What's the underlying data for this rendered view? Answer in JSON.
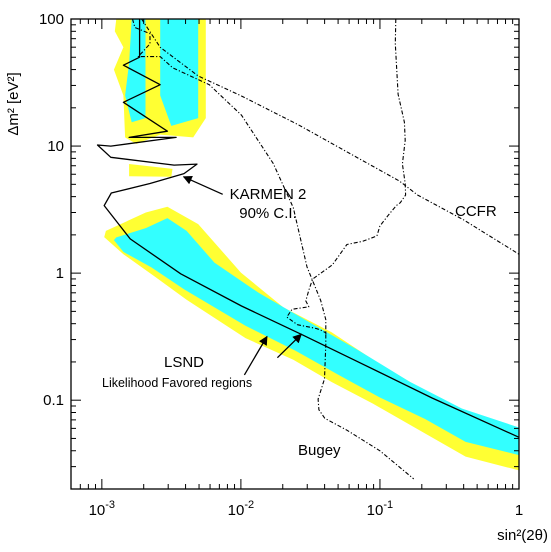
{
  "chart_data": {
    "type": "line",
    "xlabel": "sin²(2θ)",
    "ylabel": "Δm² [eV²]",
    "x_scale": "log",
    "y_scale": "log",
    "xlim": [
      0.0006,
      1
    ],
    "ylim": [
      0.02,
      100
    ],
    "x_ticks": [
      {
        "value": 0.001,
        "base": "10",
        "exp": "-3"
      },
      {
        "value": 0.01,
        "base": "10",
        "exp": "-2"
      },
      {
        "value": 0.1,
        "base": "10",
        "exp": "-1"
      },
      {
        "value": 1,
        "label": "1"
      }
    ],
    "y_ticks": [
      {
        "value": 0.1,
        "label": "0.1"
      },
      {
        "value": 1,
        "label": "1"
      },
      {
        "value": 10,
        "label": "10"
      },
      {
        "value": 100,
        "label": "100"
      }
    ],
    "colors": {
      "outer_region": "#ffff33",
      "inner_region": "#33ffff",
      "lines": "#000000"
    },
    "regions": [
      {
        "level": "outer",
        "x": [
          0.00107,
          0.00207,
          0.00296,
          0.00493,
          0.01,
          0.0202,
          0.0449,
          0.1,
          0.237,
          0.475,
          1,
          1,
          0.413,
          0.187,
          0.089,
          0.0449,
          0.0238,
          0.0108,
          0.00407,
          0.00242,
          0.00143,
          0.00104
        ],
        "y": [
          2.15,
          3.0,
          3.33,
          2.43,
          1.01,
          0.537,
          0.343,
          0.192,
          0.11,
          0.074,
          0.054,
          0.028,
          0.036,
          0.059,
          0.094,
          0.139,
          0.208,
          0.308,
          0.618,
          0.934,
          1.41,
          1.92
        ]
      },
      {
        "level": "inner",
        "x": [
          0.00127,
          0.00207,
          0.00296,
          0.00407,
          0.00645,
          0.0134,
          0.0299,
          0.0686,
          0.163,
          0.388,
          1,
          1,
          0.413,
          0.212,
          0.1,
          0.0494,
          0.0249,
          0.0108,
          0.00391,
          0.00227,
          0.00143,
          0.00122
        ],
        "y": [
          1.91,
          2.26,
          2.71,
          2.15,
          1.21,
          0.7,
          0.421,
          0.25,
          0.14,
          0.086,
          0.061,
          0.037,
          0.047,
          0.071,
          0.105,
          0.16,
          0.244,
          0.386,
          0.744,
          1.11,
          1.47,
          1.82
        ]
      },
      {
        "level": "outer",
        "x": [
          0.00127,
          0.00147,
          0.00196,
          0.00227,
          0.00263,
          0.00331,
          0.00493,
          0.00559,
          0.00559,
          0.00454,
          0.00263,
          0.00177,
          0.00147,
          0.00143,
          0.00122,
          0.00143,
          0.00124
        ],
        "y": [
          100,
          100,
          100,
          100,
          100,
          100,
          100,
          100,
          16.6,
          11.7,
          12.3,
          10.4,
          11.7,
          25,
          40,
          60,
          80
        ]
      },
      {
        "level": "inner",
        "x": [
          0.00164,
          0.00206,
          0.00206,
          0.00164,
          0.00147,
          0.00157
        ],
        "y": [
          100,
          100,
          16.6,
          15.4,
          25,
          45
        ]
      },
      {
        "level": "inner",
        "x": [
          0.00263,
          0.00493,
          0.00493,
          0.00316,
          0.00263
        ],
        "y": [
          100,
          100,
          16.6,
          14.4,
          25
        ]
      },
      {
        "level": "outer",
        "x": [
          0.00157,
          0.00322,
          0.00316,
          0.00157
        ],
        "y": [
          7.22,
          6.61,
          5.73,
          5.79
        ]
      }
    ],
    "curves": [
      {
        "name": "KARMEN 2 90% C.I.",
        "style": "solid",
        "x": [
          0.00187,
          0.00187,
          0.00143,
          0.00263,
          0.00143,
          0.00296,
          0.00157,
          0.00342,
          0.00116,
          0.00093,
          0.00116,
          0.00331,
          0.00483,
          0.0039,
          0.00222,
          0.00117,
          0.00104,
          0.0016,
          0.00369,
          0.0101,
          0.0272,
          0.0686,
          0.237,
          1
        ],
        "y": [
          100,
          50,
          43.3,
          30.4,
          22.1,
          13.1,
          11.7,
          11.7,
          10,
          10.2,
          8.16,
          7.08,
          7.21,
          6.07,
          5.07,
          4.27,
          3.4,
          1.86,
          0.988,
          0.551,
          0.33,
          0.202,
          0.104,
          0.051
        ]
      },
      {
        "name": "CCFR",
        "style": "dashdot",
        "x": [
          0.00193,
          0.00263,
          0.00493,
          0.01,
          0.0259,
          0.0686,
          0.138,
          0.187,
          0.399,
          1
        ],
        "y": [
          100,
          59.9,
          35.6,
          24.9,
          14.7,
          8.11,
          5.31,
          4.11,
          2.63,
          1.41
        ]
      },
      {
        "name": "Bugey",
        "style": "dashdot",
        "x": [
          0.00166,
          0.00173,
          0.00222,
          0.00222,
          0.00183,
          0.00263,
          0.00323,
          0.00593,
          0.0101,
          0.0171,
          0.0238,
          0.0299,
          0.0375,
          0.0408,
          0.0408,
          0.0399,
          0.0359,
          0.0364,
          0.0401,
          0.0579,
          0.1,
          0.175
        ],
        "y": [
          100,
          85.7,
          76.6,
          63.8,
          50.6,
          50.6,
          41.3,
          30.4,
          17.5,
          7.28,
          3.27,
          1.12,
          0.609,
          0.431,
          0.275,
          0.147,
          0.102,
          0.084,
          0.072,
          0.058,
          0.04,
          0.024
        ]
      },
      {
        "name": "Bugey",
        "style": "dashdot",
        "x": [
          0.13,
          0.129,
          0.135,
          0.15,
          0.152,
          0.145,
          0.152,
          0.153,
          0.14,
          0.131,
          0.114,
          0.1,
          0.0951,
          0.0751,
          0.0642,
          0.0579,
          0.0454,
          0.0328,
          0.0308,
          0.0293,
          0.0308,
          0.0233,
          0.0214,
          0.0255,
          0.0346,
          0.0375,
          0.0408,
          0.041
        ],
        "y": [
          100,
          63.8,
          25.6,
          15.4,
          11.1,
          7.22,
          5.07,
          4.11,
          3.58,
          3.4,
          2.83,
          2.35,
          1.96,
          1.78,
          1.72,
          1.68,
          1.16,
          0.897,
          0.733,
          0.604,
          0.543,
          0.519,
          0.451,
          0.393,
          0.367,
          0.356,
          0.339,
          0.32
        ]
      }
    ],
    "annotations": [
      {
        "name": "karmen-label",
        "lines": [
          "KARMEN 2",
          "90% C.I."
        ],
        "arrows": [
          {
            "from": [
              0.0074,
              4.17
            ],
            "to": [
              0.00387,
              5.73
            ]
          }
        ]
      },
      {
        "name": "ccfr-label",
        "lines": [
          "CCFR"
        ]
      },
      {
        "name": "lsnd-label",
        "lines": [
          "LSND",
          "Likelihood Favored regions"
        ],
        "arrows": [
          {
            "from": [
              0.0106,
              0.158
            ],
            "to": [
              0.0154,
              0.317
            ]
          },
          {
            "from": [
              0.0183,
              0.216
            ],
            "to": [
              0.0272,
              0.33
            ]
          }
        ]
      },
      {
        "name": "bugey-label",
        "lines": [
          "Bugey"
        ]
      }
    ]
  }
}
